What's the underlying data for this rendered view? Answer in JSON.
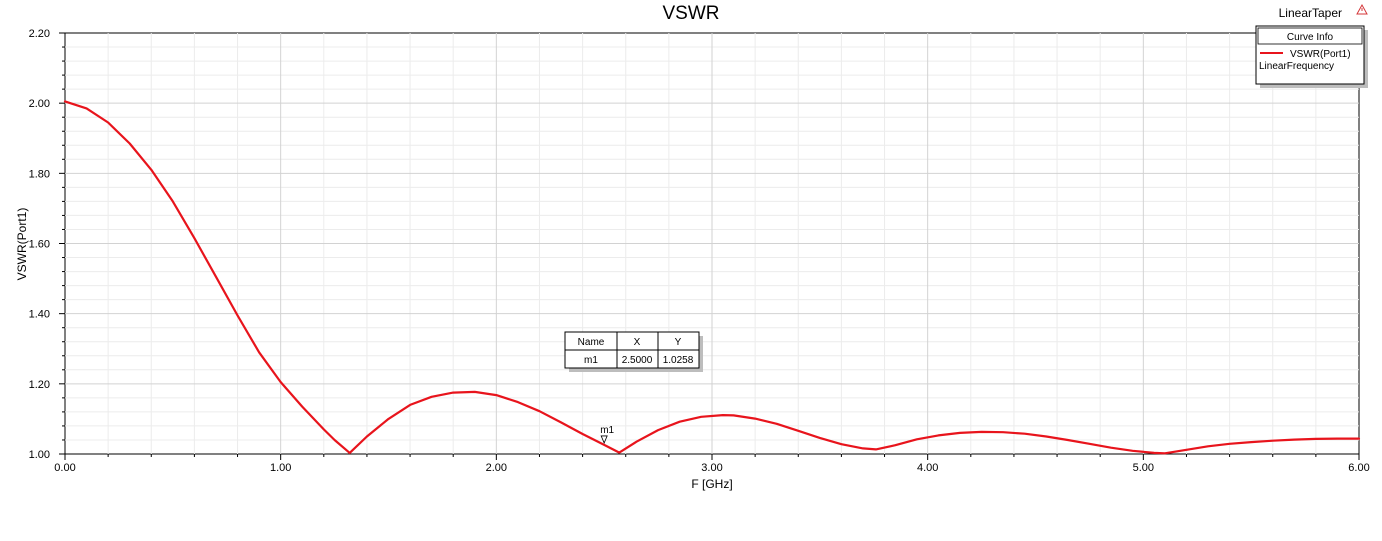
{
  "chart_data": {
    "type": "line",
    "title": "VSWR",
    "design_name": "LinearTaper",
    "xlabel": "F [GHz]",
    "ylabel": "VSWR(Port1)",
    "xlim": [
      0,
      6
    ],
    "ylim": [
      1,
      2.2
    ],
    "x_ticks": [
      "0.00",
      "1.00",
      "2.00",
      "3.00",
      "4.00",
      "5.00",
      "6.00"
    ],
    "y_ticks": [
      "1.00",
      "1.20",
      "1.40",
      "1.60",
      "1.80",
      "2.00",
      "2.20"
    ],
    "grid": true,
    "legend": {
      "title": "Curve Info",
      "placement": "top-right",
      "entries": [
        {
          "name": "VSWR(Port1)",
          "sub": "LinearFrequency",
          "color": "#e8141c"
        }
      ]
    },
    "series": [
      {
        "name": "VSWR(Port1)",
        "color": "#e8141c",
        "x": [
          0.0,
          0.1,
          0.2,
          0.3,
          0.4,
          0.5,
          0.6,
          0.7,
          0.8,
          0.9,
          1.0,
          1.1,
          1.2,
          1.25,
          1.32,
          1.4,
          1.5,
          1.6,
          1.7,
          1.8,
          1.9,
          2.0,
          2.1,
          2.2,
          2.3,
          2.4,
          2.5,
          2.57,
          2.65,
          2.75,
          2.85,
          2.95,
          3.05,
          3.1,
          3.2,
          3.3,
          3.4,
          3.5,
          3.6,
          3.7,
          3.76,
          3.85,
          3.95,
          4.05,
          4.15,
          4.25,
          4.35,
          4.45,
          4.55,
          4.65,
          4.75,
          4.85,
          4.95,
          5.05,
          5.1,
          5.2,
          5.3,
          5.4,
          5.5,
          5.6,
          5.7,
          5.8,
          5.9,
          6.0
        ],
        "values": [
          2.005,
          1.985,
          1.945,
          1.885,
          1.81,
          1.72,
          1.615,
          1.505,
          1.395,
          1.29,
          1.205,
          1.135,
          1.07,
          1.04,
          1.003,
          1.05,
          1.1,
          1.14,
          1.163,
          1.175,
          1.177,
          1.168,
          1.148,
          1.122,
          1.09,
          1.057,
          1.026,
          1.004,
          1.035,
          1.068,
          1.092,
          1.106,
          1.111,
          1.11,
          1.101,
          1.086,
          1.066,
          1.046,
          1.028,
          1.016,
          1.013,
          1.025,
          1.042,
          1.053,
          1.06,
          1.063,
          1.062,
          1.058,
          1.05,
          1.04,
          1.029,
          1.018,
          1.009,
          1.003,
          1.002,
          1.012,
          1.022,
          1.029,
          1.034,
          1.038,
          1.041,
          1.043,
          1.044,
          1.044
        ]
      }
    ],
    "marker": {
      "name": "m1",
      "x": 2.5,
      "y": 1.0258,
      "table": {
        "headers": [
          "Name",
          "X",
          "Y"
        ],
        "row": [
          "m1",
          "2.5000",
          "1.0258"
        ]
      }
    }
  }
}
